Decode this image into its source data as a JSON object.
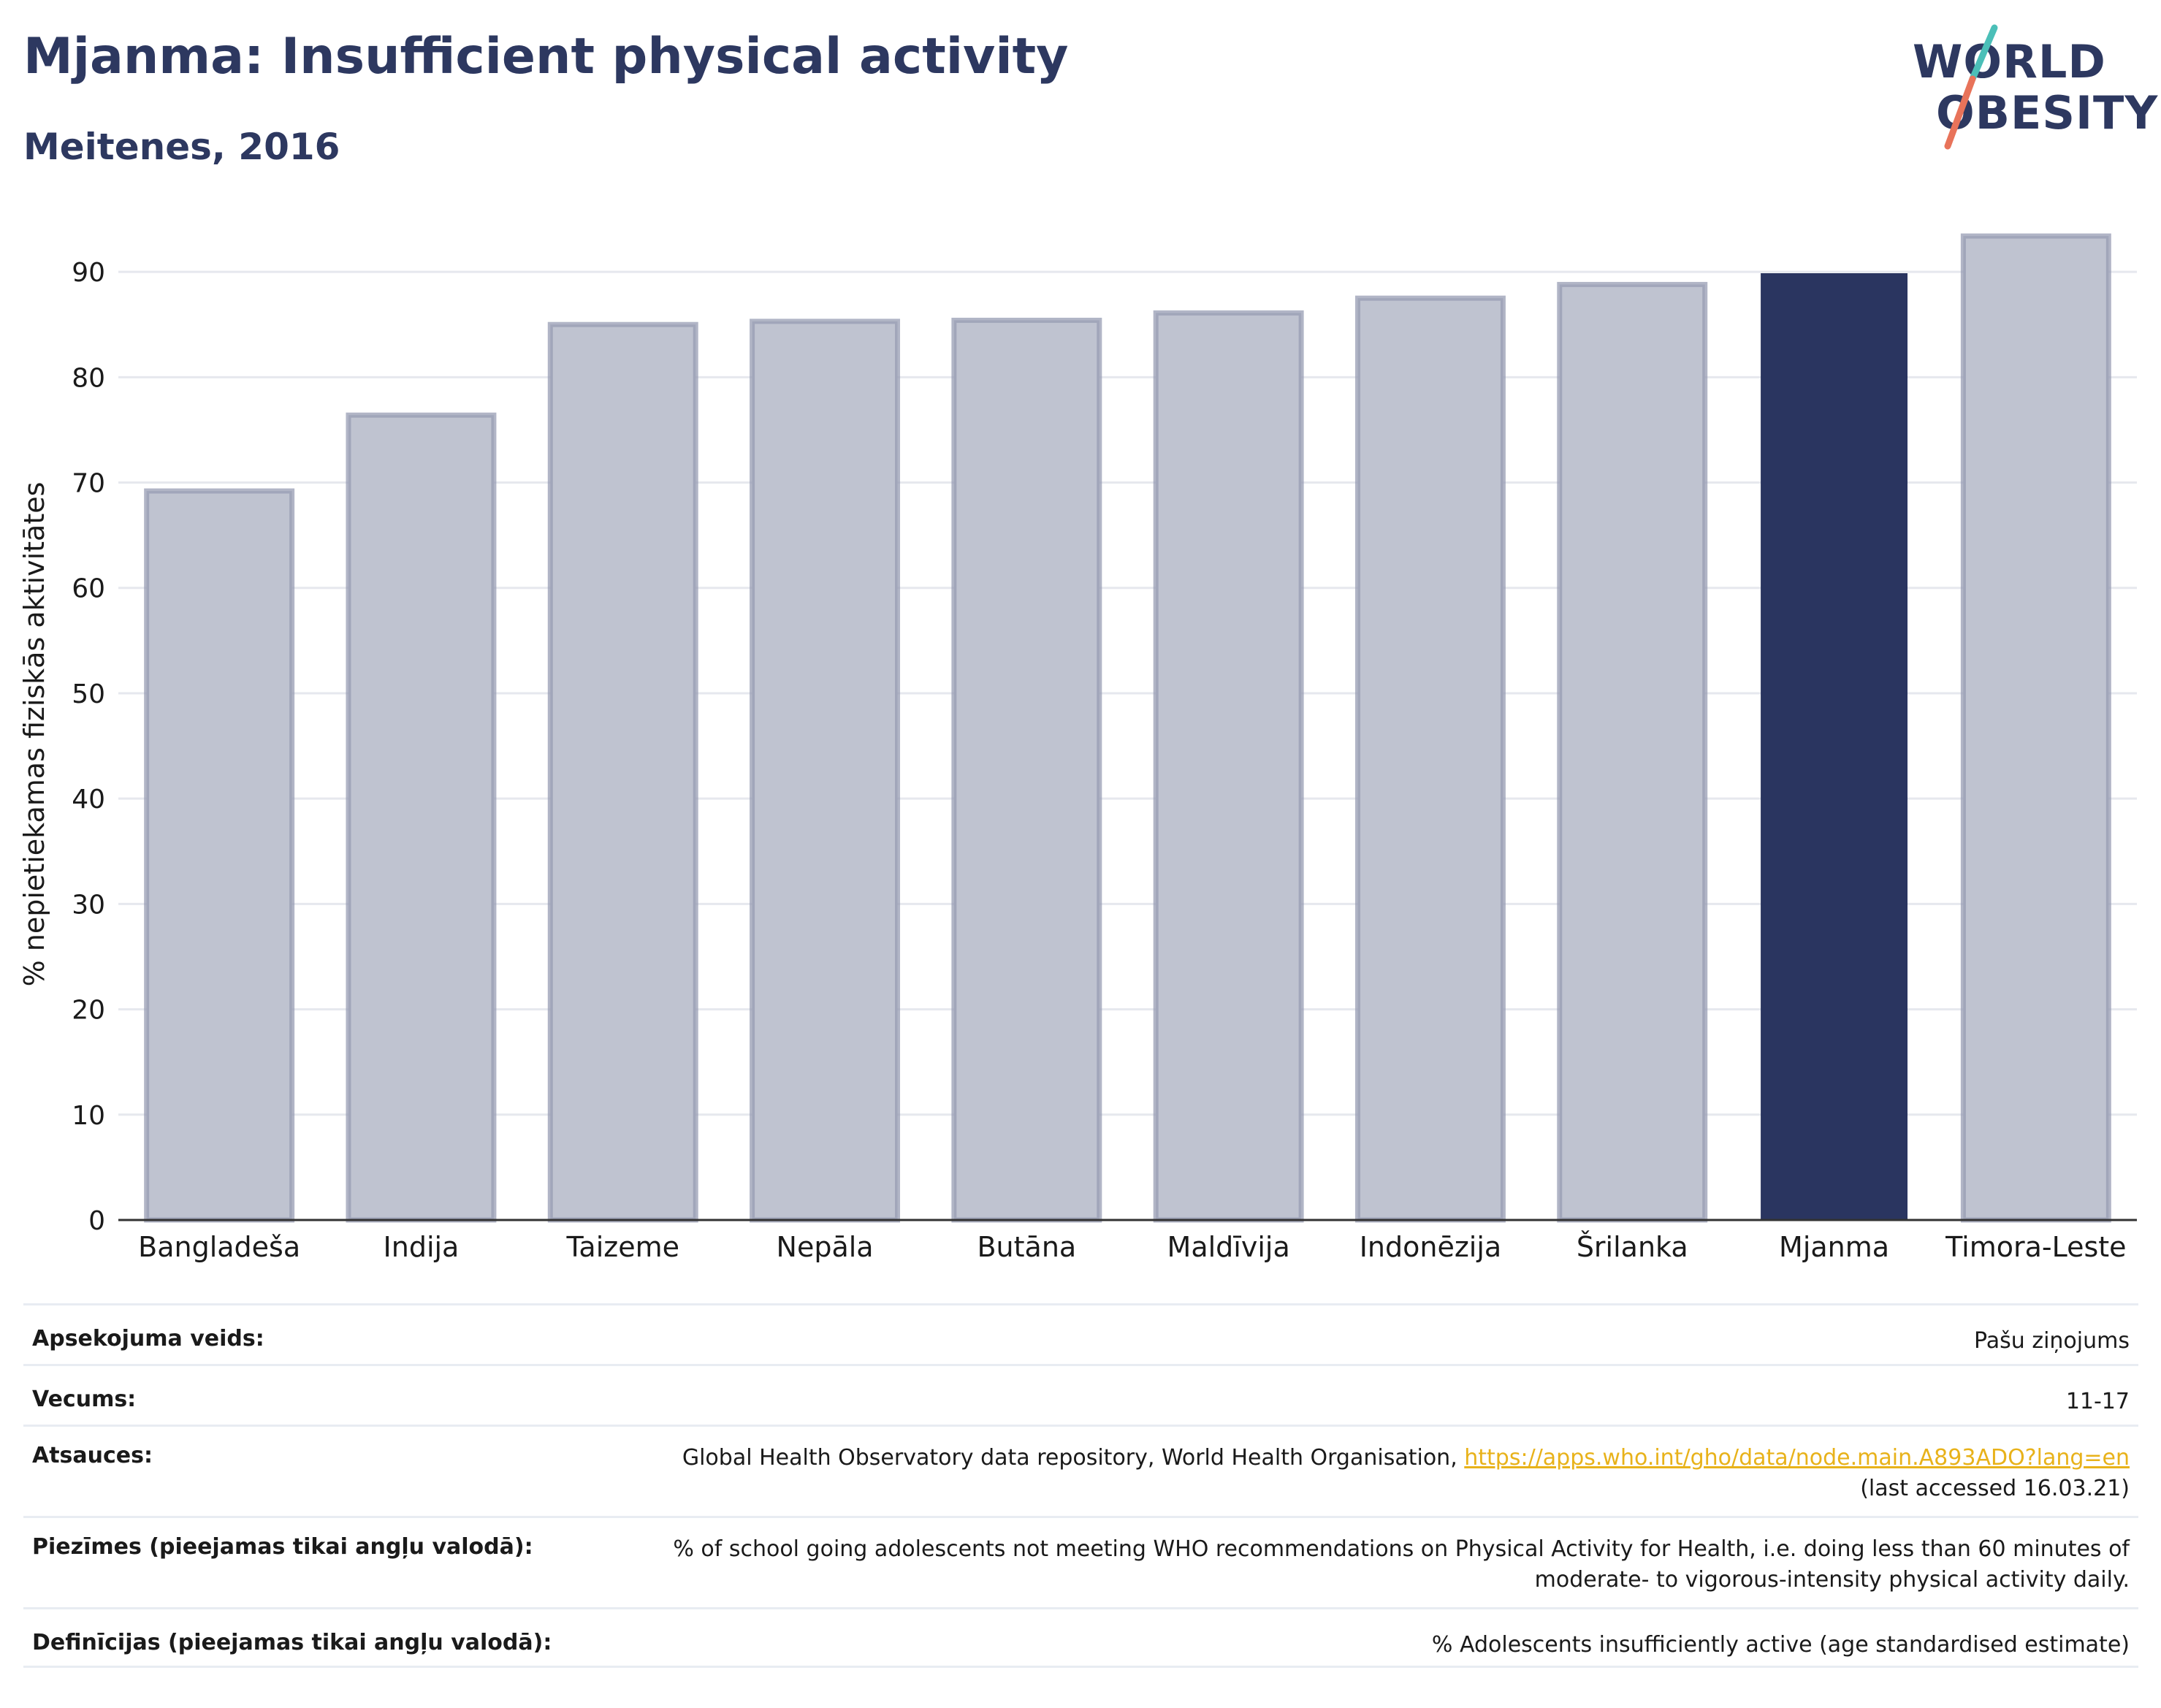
{
  "header": {
    "title": "Mjanma: Insufficient physical activity",
    "subtitle": "Meitenes, 2016"
  },
  "logo": {
    "line1": "WORLD",
    "line2": "OBESITY",
    "colors": {
      "text": "#2d3860",
      "slash_top": "#4bbfb8",
      "slash_bottom": "#e8735a"
    }
  },
  "colors": {
    "bar": "#bfc3d0",
    "bar_outline": "#979cb3",
    "highlight": "#2a3560",
    "grid": "#e6e8ee",
    "axis": "#333333"
  },
  "chart_data": {
    "type": "bar",
    "title": "Mjanma: Insufficient physical activity",
    "subtitle": "Meitenes, 2016",
    "xlabel": "",
    "ylabel": "% nepietiekamas fiziskās aktivitātes",
    "ylim": [
      0,
      95
    ],
    "yticks": [
      0,
      10,
      20,
      30,
      40,
      50,
      60,
      70,
      80,
      90
    ],
    "grid": true,
    "categories": [
      "Bangladeša",
      "Indija",
      "Taizeme",
      "Nepāla",
      "Butāna",
      "Maldīvija",
      "Indonēzija",
      "Šrilanka",
      "Mjanma",
      "Timora-Leste"
    ],
    "values": [
      69.2,
      76.4,
      85.0,
      85.3,
      85.4,
      86.1,
      87.5,
      88.8,
      89.8,
      93.4
    ],
    "highlight": "Mjanma"
  },
  "info": {
    "rows": [
      {
        "label": "Apsekojuma veids:",
        "value": "Pašu ziņojums"
      },
      {
        "label": "Vecums:",
        "value": "11-17"
      },
      {
        "label": "Atsauces:",
        "value": "Global Health Observatory data repository, World Health Organisation, ",
        "link": "https://apps.who.int/gho/data/node.main.A893ADO?lang=en",
        "value2": "(last accessed 16.03.21)"
      },
      {
        "label": "Piezīmes (pieejamas tikai angļu valodā):",
        "value": "% of school going adolescents not meeting WHO recommendations on Physical Activity for Health, i.e. doing less than 60 minutes of",
        "value2": "moderate- to vigorous-intensity physical activity daily."
      },
      {
        "label": "Definīcijas (pieejamas tikai angļu valodā):",
        "value": "% Adolescents insufficiently active (age standardised estimate)"
      }
    ]
  }
}
